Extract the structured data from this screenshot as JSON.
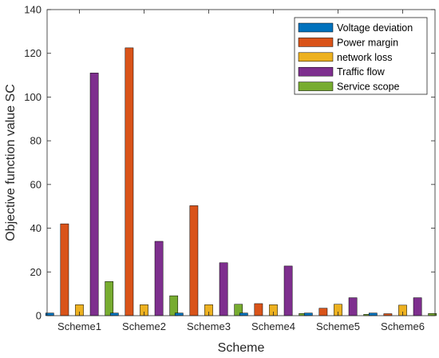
{
  "chart_data": {
    "type": "bar",
    "title": "",
    "xlabel": "Scheme",
    "ylabel": "Objective function value  SC",
    "categories": [
      "Scheme1",
      "Scheme2",
      "Scheme3",
      "Scheme4",
      "Scheme5",
      "Scheme6"
    ],
    "ylim": [
      0,
      140
    ],
    "yticks": [
      0,
      20,
      40,
      60,
      80,
      100,
      120,
      140
    ],
    "grid": false,
    "legend_position": "top-right",
    "series": [
      {
        "name": "Voltage deviation",
        "color": "#0072BD",
        "values": [
          1.2,
          1.2,
          1.2,
          1.2,
          1.2,
          1.2
        ]
      },
      {
        "name": "Power margin",
        "color": "#D95319",
        "values": [
          42,
          122.5,
          50.3,
          5.5,
          3.4,
          0.9
        ]
      },
      {
        "name": "network loss",
        "color": "#EDB120",
        "values": [
          5,
          5,
          5,
          5,
          5.2,
          4.8
        ]
      },
      {
        "name": "Traffic flow",
        "color": "#7E2F8E",
        "values": [
          111,
          34,
          24.2,
          22.7,
          8.2,
          8.2
        ]
      },
      {
        "name": "Service scope",
        "color": "#77AC30",
        "values": [
          15.6,
          9.1,
          5.2,
          1,
          0.6,
          1
        ]
      }
    ]
  }
}
